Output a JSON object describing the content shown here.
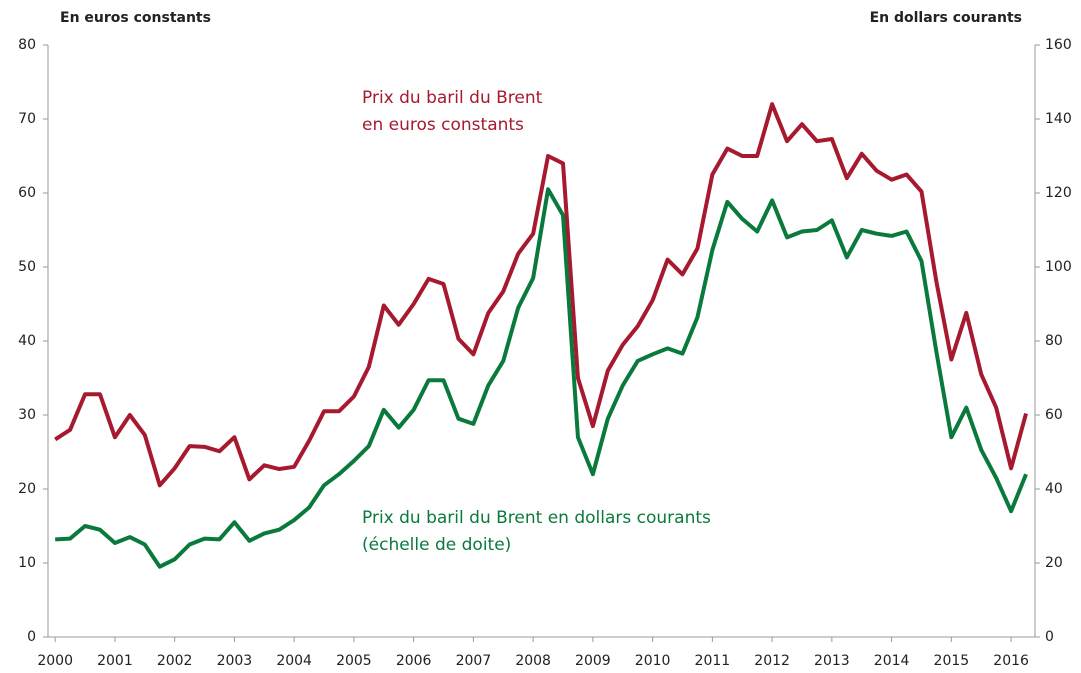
{
  "chart_data": {
    "type": "line",
    "y_axis_label": "En euros constants",
    "y2_axis_label": "En dollars courants",
    "annotations": [
      {
        "lines": [
          "Prix du baril du Brent",
          "en euros constants"
        ],
        "series": 0
      },
      {
        "lines": [
          "Prix du baril du Brent en dollars courants",
          "(échelle de doite)"
        ],
        "series": 1
      }
    ],
    "x": [
      2000,
      2000.25,
      2000.5,
      2000.75,
      2001,
      2001.25,
      2001.5,
      2001.75,
      2002,
      2002.25,
      2002.5,
      2002.75,
      2003,
      2003.25,
      2003.5,
      2003.75,
      2004,
      2004.25,
      2004.5,
      2004.75,
      2005,
      2005.25,
      2005.5,
      2005.75,
      2006,
      2006.25,
      2006.5,
      2006.75,
      2007,
      2007.25,
      2007.5,
      2007.75,
      2008,
      2008.25,
      2008.5,
      2008.75,
      2009,
      2009.25,
      2009.5,
      2009.75,
      2010,
      2010.25,
      2010.5,
      2010.75,
      2011,
      2011.25,
      2011.5,
      2011.75,
      2012,
      2012.25,
      2012.5,
      2012.75,
      2013,
      2013.25,
      2013.5,
      2013.75,
      2014,
      2014.25,
      2014.5,
      2014.75,
      2015,
      2015.25,
      2015.5,
      2015.75,
      2016,
      2016.25
    ],
    "series": [
      {
        "name": "Prix du baril du Brent en euros constants",
        "color": "#a6192e",
        "values": [
          26.7,
          28,
          32.8,
          32.8,
          27,
          30,
          27.3,
          20.5,
          22.8,
          25.8,
          25.7,
          25.1,
          27,
          21.3,
          23.2,
          22.7,
          23,
          26.5,
          30.5,
          30.5,
          32.5,
          36.5,
          44.8,
          42.2,
          45,
          48.4,
          47.7,
          40.3,
          38.2,
          43.8,
          46.7,
          51.8,
          54.5,
          65,
          64,
          35,
          28.5,
          36,
          39.5,
          42,
          45.5,
          51,
          49,
          52.5,
          62.5,
          66,
          65,
          65,
          72,
          67,
          69.3,
          67,
          67.3,
          62,
          65.3,
          63,
          61.8,
          62.5,
          60.2,
          48,
          37.5,
          43.8,
          35.5,
          31,
          22.8,
          30.2
        ]
      },
      {
        "name": "Prix du baril du Brent en dollars courants",
        "color": "#0a7a3c",
        "axis": "y2",
        "values": [
          26.4,
          26.6,
          30,
          29,
          25.4,
          27,
          25,
          19,
          21,
          25,
          26.6,
          26.4,
          31,
          26,
          28,
          29,
          31.6,
          35,
          41,
          44,
          47.6,
          51.6,
          61.4,
          56.6,
          61.4,
          69.4,
          69.4,
          59,
          57.6,
          68,
          74.6,
          89,
          97,
          121,
          114,
          54,
          44,
          59,
          68,
          74.6,
          76.4,
          78,
          76.6,
          86.4,
          104.6,
          117.6,
          113,
          109.6,
          118,
          108,
          109.6,
          110,
          112.6,
          102.6,
          110,
          109,
          108.4,
          109.6,
          101.6,
          77,
          54,
          62,
          50.6,
          43,
          34,
          44
        ]
      }
    ],
    "xlim": [
      1999.88,
      2016.4
    ],
    "xticks": [
      2000,
      2001,
      2002,
      2003,
      2004,
      2005,
      2006,
      2007,
      2008,
      2009,
      2010,
      2011,
      2012,
      2013,
      2014,
      2015,
      2016
    ],
    "ylim": [
      0,
      80
    ],
    "yticks": [
      0,
      10,
      20,
      30,
      40,
      50,
      60,
      70,
      80
    ],
    "y2lim": [
      0,
      160
    ],
    "y2ticks": [
      0,
      20,
      40,
      60,
      80,
      100,
      120,
      140,
      160
    ],
    "grid": false
  }
}
